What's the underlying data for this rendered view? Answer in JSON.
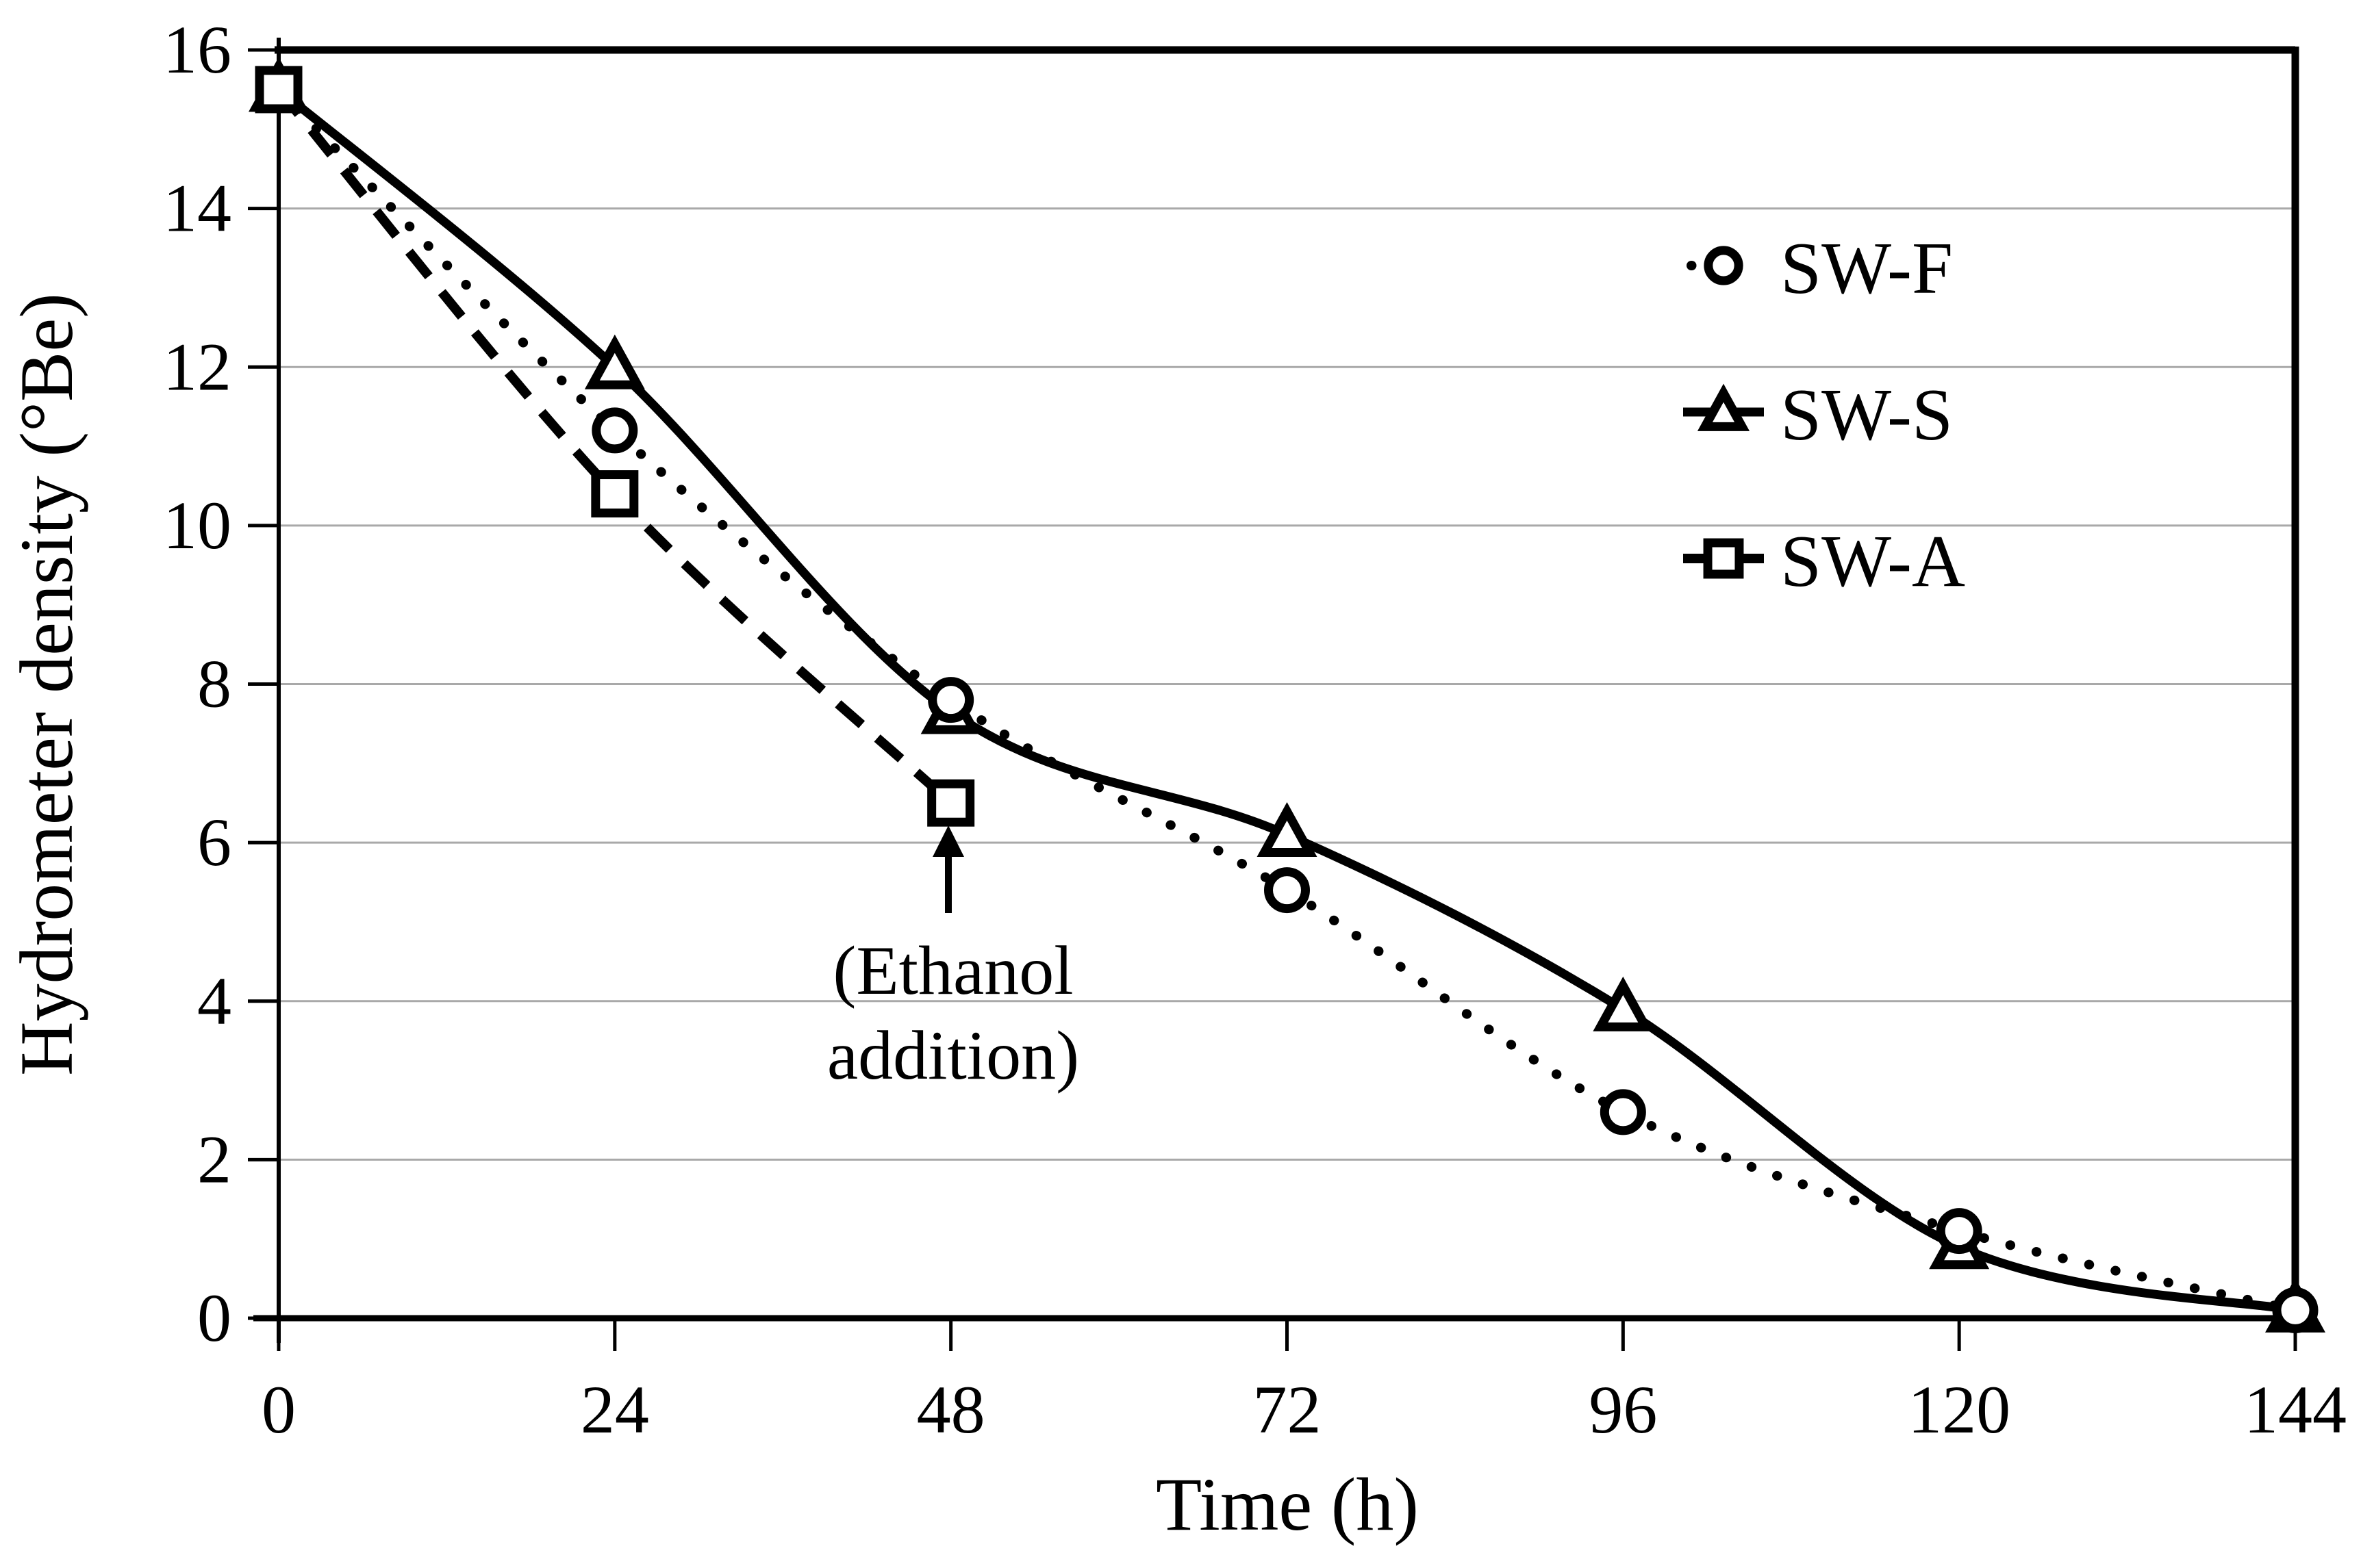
{
  "chart_data": {
    "type": "line",
    "title": "",
    "xlabel": "Time (h)",
    "ylabel": "Hydrometer density  (°Be)",
    "x_ticks": [
      0,
      24,
      48,
      72,
      96,
      120,
      144
    ],
    "y_ticks": [
      0,
      2,
      4,
      6,
      8,
      10,
      12,
      14,
      16
    ],
    "xlim": [
      0,
      144
    ],
    "ylim": [
      0,
      16
    ],
    "grid": "horizontal gridlines every 2 units",
    "legend": {
      "position": "upper-right-inside",
      "entries": [
        "SW-F",
        "SW-S",
        "SW-A"
      ]
    },
    "annotation": {
      "lines": [
        "(Ethanol",
        "addition)"
      ],
      "arrow": "vertical arrow pointing up at SW-A point (48, 6.5)"
    },
    "series": [
      {
        "name": "SW-F",
        "marker": "circle",
        "line_style": "dotted",
        "x": [
          0,
          24,
          48,
          72,
          96,
          120,
          144
        ],
        "values": [
          15.5,
          11.2,
          7.8,
          5.4,
          2.6,
          1.1,
          0.1
        ]
      },
      {
        "name": "SW-S",
        "marker": "triangle",
        "line_style": "solid",
        "x": [
          0,
          24,
          48,
          72,
          96,
          120,
          144
        ],
        "values": [
          15.5,
          12.0,
          7.65,
          6.1,
          3.9,
          0.9,
          0.1
        ]
      },
      {
        "name": "SW-A",
        "marker": "square",
        "line_style": "dashed",
        "x": [
          0,
          24,
          48
        ],
        "values": [
          15.5,
          10.4,
          6.5
        ]
      }
    ],
    "colors": {
      "line": "#000000",
      "grid": "#a9a9a9",
      "background": "#ffffff",
      "text": "#000000"
    }
  }
}
